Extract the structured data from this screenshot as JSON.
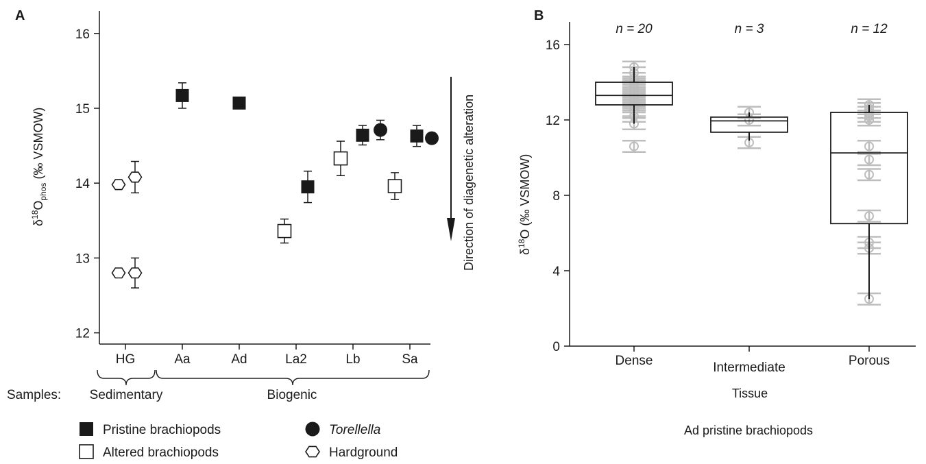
{
  "chart_data": [
    {
      "panel": "A",
      "type": "scatter",
      "ylabel": {
        "symbol": "δ",
        "sup": "18",
        "main": "O",
        "sub": "phos",
        "rest": " (‰ VSMOW)"
      },
      "ylim": [
        11.85,
        16.3
      ],
      "yticks": [
        12,
        13,
        14,
        15,
        16
      ],
      "categories": [
        "HG",
        "Aa",
        "Ad",
        "La2",
        "Lb",
        "Sa"
      ],
      "groups": [
        {
          "label": "Sedimentary",
          "from": "HG",
          "to": "HG"
        },
        {
          "label": "Biogenic",
          "from": "Aa",
          "to": "Sa"
        }
      ],
      "groups_prefix": "Samples:",
      "annotation": "Direction of diagenetic alteration",
      "series": [
        {
          "name": "Pristine brachiopods",
          "marker": "square-filled",
          "points": [
            {
              "x": "Aa",
              "y": 15.17,
              "err": 0.17
            },
            {
              "x": "Ad",
              "y": 15.07,
              "err": 0
            },
            {
              "x": "La2",
              "y": 13.95,
              "err": 0.21
            },
            {
              "x": "Lb",
              "y": 14.64,
              "err": 0.13
            },
            {
              "x": "Sa",
              "y": 14.63,
              "err": 0.14
            }
          ]
        },
        {
          "name": "Altered brachiopods",
          "marker": "square-open",
          "points": [
            {
              "x": "La2",
              "y": 13.36,
              "err": 0.16
            },
            {
              "x": "Lb",
              "y": 14.33,
              "err": 0.23
            },
            {
              "x": "Sa",
              "y": 13.96,
              "err": 0.18
            }
          ]
        },
        {
          "name": "Torellella",
          "italic": true,
          "marker": "circle-filled",
          "points": [
            {
              "x": "Lb",
              "y": 14.71,
              "err": 0.13
            },
            {
              "x": "Sa",
              "y": 14.6,
              "err": 0
            }
          ]
        },
        {
          "name": "Hardground",
          "marker": "hexagon-open",
          "points": [
            {
              "x": "HG",
              "y": 13.98,
              "err": 0,
              "side": "left"
            },
            {
              "x": "HG",
              "y": 14.08,
              "err": 0.21,
              "side": "right"
            },
            {
              "x": "HG",
              "y": 12.8,
              "err": 0,
              "side": "left"
            },
            {
              "x": "HG",
              "y": 12.8,
              "err": 0.2,
              "side": "right"
            }
          ]
        }
      ]
    },
    {
      "panel": "B",
      "type": "box",
      "ylabel": {
        "symbol": "δ",
        "sup": "18",
        "main": "O",
        "rest": " (‰ VSMOW)"
      },
      "xlabel": "Tissue",
      "caption": "Ad pristine brachiopods",
      "ylim": [
        0,
        17.2
      ],
      "yticks": [
        0,
        4,
        8,
        12,
        16
      ],
      "categories": [
        "Dense",
        "Intermediate",
        "Porous"
      ],
      "n_labels": [
        "n = 20",
        "n = 3",
        "n = 12"
      ],
      "boxes": [
        {
          "q1": 12.8,
          "median": 13.3,
          "q3": 14.0,
          "whisker_low": 11.8,
          "whisker_high": 14.8
        },
        {
          "q1": 11.35,
          "median": 11.95,
          "q3": 12.15,
          "whisker_low": 10.9,
          "whisker_high": 12.4
        },
        {
          "q1": 6.5,
          "median": 10.25,
          "q3": 12.4,
          "whisker_low": 2.5,
          "whisker_high": 12.8
        }
      ],
      "points": [
        [
          10.6,
          11.8,
          12.2,
          12.5,
          12.7,
          12.9,
          13.0,
          13.1,
          13.2,
          13.3,
          13.3,
          13.4,
          13.5,
          13.6,
          13.7,
          13.8,
          14.0,
          14.2,
          14.5,
          14.8
        ],
        [
          10.8,
          12.0,
          12.4
        ],
        [
          2.5,
          5.2,
          5.5,
          6.9,
          9.1,
          9.9,
          10.6,
          12.0,
          12.2,
          12.4,
          12.6,
          12.8
        ]
      ],
      "point_err": 0.3
    }
  ]
}
